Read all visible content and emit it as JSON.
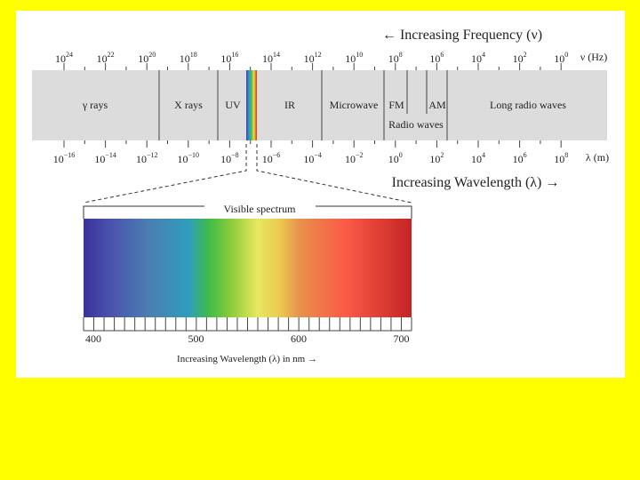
{
  "frequency_scale": {
    "title": "← Increasing Frequency (ν)",
    "unit": "ν (Hz)",
    "ticks": [
      {
        "base": "10",
        "exponent": "24"
      },
      {
        "base": "10",
        "exponent": "22"
      },
      {
        "base": "10",
        "exponent": "20"
      },
      {
        "base": "10",
        "exponent": "18"
      },
      {
        "base": "10",
        "exponent": "16"
      },
      {
        "base": "10",
        "exponent": "14"
      },
      {
        "base": "10",
        "exponent": "12"
      },
      {
        "base": "10",
        "exponent": "10"
      },
      {
        "base": "10",
        "exponent": "8"
      },
      {
        "base": "10",
        "exponent": "6"
      },
      {
        "base": "10",
        "exponent": "4"
      },
      {
        "base": "10",
        "exponent": "2"
      },
      {
        "base": "10",
        "exponent": "0"
      }
    ]
  },
  "wavelength_scale": {
    "title": "Increasing Wavelength (λ) →",
    "unit": "λ (m)",
    "ticks": [
      {
        "base": "10",
        "exponent": "−16"
      },
      {
        "base": "10",
        "exponent": "−14"
      },
      {
        "base": "10",
        "exponent": "−12"
      },
      {
        "base": "10",
        "exponent": "−10"
      },
      {
        "base": "10",
        "exponent": "−8"
      },
      {
        "base": "10",
        "exponent": "−6"
      },
      {
        "base": "10",
        "exponent": "−4"
      },
      {
        "base": "10",
        "exponent": "−2"
      },
      {
        "base": "10",
        "exponent": "0"
      },
      {
        "base": "10",
        "exponent": "2"
      },
      {
        "base": "10",
        "exponent": "4"
      },
      {
        "base": "10",
        "exponent": "6"
      },
      {
        "base": "10",
        "exponent": "8"
      }
    ]
  },
  "bands": {
    "gamma": "γ rays",
    "xray": "X rays",
    "uv": "UV",
    "ir": "IR",
    "microwave": "Microwave",
    "fm": "FM",
    "am": "AM",
    "radio": "Radio waves",
    "long_radio": "Long radio waves"
  },
  "visible_spectrum": {
    "title": "Visible spectrum",
    "ticks": [
      400,
      500,
      600,
      700
    ],
    "axis_title": "Increasing Wavelength (λ) in nm →"
  }
}
